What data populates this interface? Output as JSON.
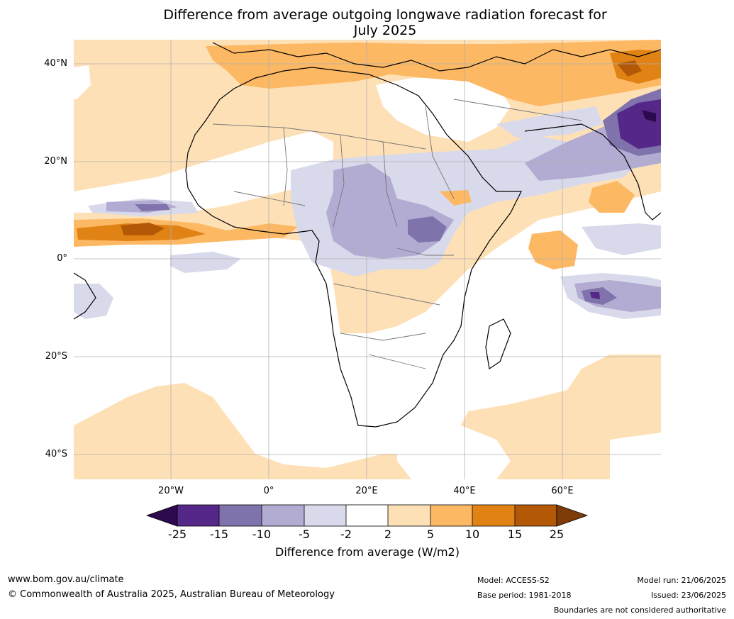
{
  "title_line1": "Difference from average outgoing longwave radiation forecast for",
  "title_line2": "July 2025",
  "lat_labels": [
    "40°N",
    "20°N",
    "0°",
    "20°S",
    "40°S"
  ],
  "lon_labels": [
    "20°W",
    "0°",
    "20°E",
    "40°E",
    "60°E"
  ],
  "legend": {
    "title": "Difference from average (W/m2)",
    "ticks": [
      "-25",
      "-15",
      "-10",
      "-5",
      "-2",
      "2",
      "5",
      "10",
      "15",
      "25"
    ],
    "colors": [
      "#2d0a4e",
      "#542788",
      "#8073ac",
      "#b2abd2",
      "#d8daeb",
      "#ffffff",
      "#fee0b6",
      "#fdb863",
      "#e08214",
      "#b35806",
      "#7f3b08"
    ]
  },
  "footer": {
    "website": "www.bom.gov.au/climate",
    "copyright": "© Commonwealth of Australia 2025, Australian Bureau of Meteorology",
    "model": "Model: ACCESS-S2",
    "base_period": "Base period: 1981-2018",
    "model_run": "Model run: 21/06/2025",
    "issued": "Issued: 23/06/2025",
    "disclaimer": "Boundaries are not considered authoritative"
  }
}
